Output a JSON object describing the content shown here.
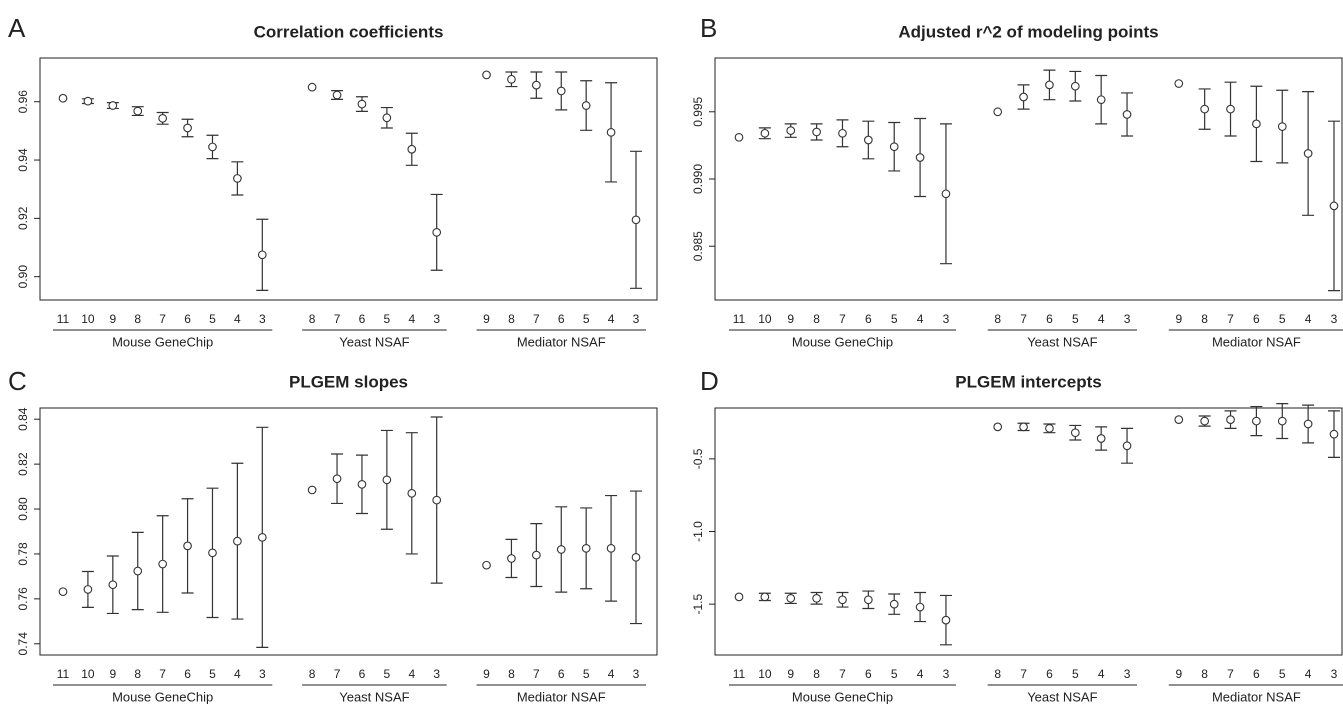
{
  "chart_data": [
    {
      "type": "errorbar",
      "panel": "A",
      "title": "Correlation coefficients",
      "ylim": [
        0.892,
        0.975
      ],
      "yticks": [
        {
          "value": 0.9,
          "label": "0.90"
        },
        0.92,
        0.94,
        0.96
      ],
      "groups": [
        {
          "name": "Mouse GeneChip",
          "categories": [
            "11",
            "10",
            "9",
            "8",
            "7",
            "6",
            "5",
            "4",
            "3"
          ],
          "values": [
            0.9612,
            0.9602,
            0.9587,
            0.9568,
            0.9543,
            0.951,
            0.9445,
            0.9337,
            0.9075
          ],
          "errors": [
            null,
            0.0008,
            0.001,
            0.0015,
            0.002,
            0.003,
            0.004,
            0.0057,
            0.0122
          ]
        },
        {
          "name": "Yeast NSAF",
          "categories": [
            "8",
            "7",
            "6",
            "5",
            "4",
            "3"
          ],
          "values": [
            0.965,
            0.9623,
            0.9592,
            0.9545,
            0.9437,
            0.9152
          ],
          "errors": [
            null,
            0.0015,
            0.0025,
            0.0035,
            0.0055,
            0.013
          ]
        },
        {
          "name": "Mediator NSAF",
          "categories": [
            "9",
            "8",
            "7",
            "6",
            "5",
            "4",
            "3"
          ],
          "values": [
            0.9692,
            0.9677,
            0.9657,
            0.9637,
            0.9587,
            0.9495,
            0.9195
          ],
          "errors": [
            null,
            0.0025,
            0.0045,
            0.0065,
            0.0085,
            0.017,
            0.0235
          ]
        }
      ]
    },
    {
      "type": "errorbar",
      "panel": "B",
      "title": "Adjusted r^2 of modeling points",
      "ylim": [
        0.981,
        0.999
      ],
      "yticks": [
        0.985,
        {
          "value": 0.99,
          "label": "0.990"
        },
        0.995
      ],
      "groups": [
        {
          "name": "Mouse GeneChip",
          "categories": [
            "11",
            "10",
            "9",
            "8",
            "7",
            "6",
            "5",
            "4",
            "3"
          ],
          "values": [
            0.9931,
            0.9934,
            0.9936,
            0.9935,
            0.9934,
            0.9929,
            0.9924,
            0.9916,
            0.9889
          ],
          "errors": [
            null,
            0.0004,
            0.0005,
            0.0006,
            0.001,
            0.0014,
            0.0018,
            0.0029,
            0.0052
          ]
        },
        {
          "name": "Yeast NSAF",
          "categories": [
            "8",
            "7",
            "6",
            "5",
            "4",
            "3"
          ],
          "values": [
            0.995,
            0.9961,
            0.997,
            0.9969,
            0.9959,
            0.9948
          ],
          "errors": [
            null,
            0.0009,
            0.0011,
            0.0011,
            0.0018,
            0.0016
          ]
        },
        {
          "name": "Mediator NSAF",
          "categories": [
            "9",
            "8",
            "7",
            "6",
            "5",
            "4",
            "3"
          ],
          "values": [
            0.9971,
            0.9952,
            0.9952,
            0.9941,
            0.9939,
            0.9919,
            0.988
          ],
          "errors": [
            null,
            0.0015,
            0.002,
            0.0028,
            0.0027,
            0.0046,
            0.0063
          ]
        }
      ]
    },
    {
      "type": "errorbar",
      "panel": "C",
      "title": "PLGEM slopes",
      "ylim": [
        0.735,
        0.845
      ],
      "yticks": [
        0.74,
        0.76,
        0.78,
        {
          "value": 0.8,
          "label": "0.80"
        },
        0.82,
        0.84
      ],
      "groups": [
        {
          "name": "Mouse GeneChip",
          "categories": [
            "11",
            "10",
            "9",
            "8",
            "7",
            "6",
            "5",
            "4",
            "3"
          ],
          "values": [
            0.7632,
            0.7642,
            0.7663,
            0.7724,
            0.7755,
            0.7836,
            0.7805,
            0.7857,
            0.7874
          ],
          "errors": [
            null,
            0.008,
            0.0128,
            0.0172,
            0.0215,
            0.021,
            0.0288,
            0.0347,
            0.049
          ]
        },
        {
          "name": "Yeast NSAF",
          "categories": [
            "8",
            "7",
            "6",
            "5",
            "4",
            "3"
          ],
          "values": [
            0.8085,
            0.8135,
            0.811,
            0.813,
            0.807,
            0.804
          ],
          "errors": [
            null,
            0.011,
            0.013,
            0.022,
            0.027,
            0.037
          ]
        },
        {
          "name": "Mediator NSAF",
          "categories": [
            "9",
            "8",
            "7",
            "6",
            "5",
            "4",
            "3"
          ],
          "values": [
            0.775,
            0.778,
            0.7795,
            0.782,
            0.7825,
            0.7825,
            0.7785
          ],
          "errors": [
            null,
            0.0085,
            0.014,
            0.019,
            0.018,
            0.0235,
            0.0295
          ]
        }
      ]
    },
    {
      "type": "errorbar",
      "panel": "D",
      "title": "PLGEM intercepts",
      "ylim": [
        -1.85,
        -0.15
      ],
      "yticks": [
        -1.5,
        {
          "value": -1,
          "label": "-1.0"
        },
        -0.5
      ],
      "groups": [
        {
          "name": "Mouse GeneChip",
          "categories": [
            "11",
            "10",
            "9",
            "8",
            "7",
            "6",
            "5",
            "4",
            "3"
          ],
          "values": [
            -1.45,
            -1.45,
            -1.46,
            -1.46,
            -1.47,
            -1.47,
            -1.5,
            -1.52,
            -1.61
          ],
          "errors": [
            null,
            0.025,
            0.035,
            0.04,
            0.05,
            0.06,
            0.07,
            0.1,
            0.17
          ]
        },
        {
          "name": "Yeast NSAF",
          "categories": [
            "8",
            "7",
            "6",
            "5",
            "4",
            "3"
          ],
          "values": [
            -0.28,
            -0.28,
            -0.29,
            -0.32,
            -0.36,
            -0.41
          ],
          "errors": [
            null,
            0.025,
            0.03,
            0.05,
            0.08,
            0.12
          ]
        },
        {
          "name": "Mediator NSAF",
          "categories": [
            "9",
            "8",
            "7",
            "6",
            "5",
            "4",
            "3"
          ],
          "values": [
            -0.23,
            -0.24,
            -0.23,
            -0.24,
            -0.24,
            -0.26,
            -0.33
          ],
          "errors": [
            null,
            0.035,
            0.06,
            0.1,
            0.12,
            0.13,
            0.16
          ]
        }
      ]
    }
  ]
}
